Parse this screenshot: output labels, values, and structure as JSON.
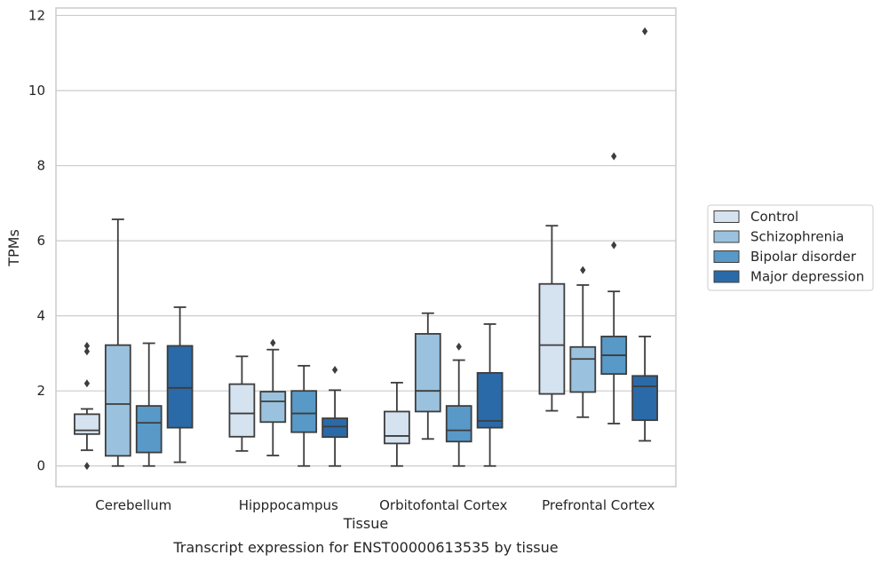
{
  "chart_data": {
    "type": "box",
    "caption": "Transcript expression for ENST00000613535 by tissue",
    "xlabel": "Tissue",
    "ylabel": "TPMs",
    "ylim": [
      -0.55,
      12.2
    ],
    "yticks": [
      0,
      2,
      4,
      6,
      8,
      10,
      12
    ],
    "grid": true,
    "legend_position": "right",
    "categories": [
      "Cerebellum",
      "Hipppocampus",
      "Orbitofontal Cortex",
      "Prefrontal Cortex"
    ],
    "series": [
      {
        "name": "Control",
        "color": "#d5e2f0",
        "boxes": [
          {
            "whislo": 0.42,
            "q1": 0.85,
            "med": 0.95,
            "q3": 1.38,
            "whishi": 1.52,
            "fliers": [
              0.0,
              2.2,
              3.05,
              3.2
            ]
          },
          {
            "whislo": 0.4,
            "q1": 0.78,
            "med": 1.4,
            "q3": 2.18,
            "whishi": 2.92,
            "fliers": []
          },
          {
            "whislo": 0.0,
            "q1": 0.6,
            "med": 0.8,
            "q3": 1.45,
            "whishi": 2.22,
            "fliers": []
          },
          {
            "whislo": 1.47,
            "q1": 1.92,
            "med": 3.22,
            "q3": 4.85,
            "whishi": 6.4,
            "fliers": []
          }
        ]
      },
      {
        "name": "Schizophrenia",
        "color": "#9ac2de",
        "boxes": [
          {
            "whislo": 0.0,
            "q1": 0.27,
            "med": 1.65,
            "q3": 3.22,
            "whishi": 6.57,
            "fliers": []
          },
          {
            "whislo": 0.28,
            "q1": 1.17,
            "med": 1.72,
            "q3": 1.98,
            "whishi": 3.1,
            "fliers": [
              3.28
            ]
          },
          {
            "whislo": 0.72,
            "q1": 1.45,
            "med": 2.0,
            "q3": 3.52,
            "whishi": 4.07,
            "fliers": []
          },
          {
            "whislo": 1.3,
            "q1": 1.97,
            "med": 2.85,
            "q3": 3.17,
            "whishi": 4.82,
            "fliers": [
              5.22
            ]
          }
        ]
      },
      {
        "name": "Bipolar disorder",
        "color": "#5899c7",
        "boxes": [
          {
            "whislo": 0.0,
            "q1": 0.36,
            "med": 1.15,
            "q3": 1.6,
            "whishi": 3.27,
            "fliers": []
          },
          {
            "whislo": 0.0,
            "q1": 0.9,
            "med": 1.4,
            "q3": 2.0,
            "whishi": 2.67,
            "fliers": []
          },
          {
            "whislo": 0.0,
            "q1": 0.65,
            "med": 0.95,
            "q3": 1.6,
            "whishi": 2.82,
            "fliers": [
              3.18
            ]
          },
          {
            "whislo": 1.13,
            "q1": 2.45,
            "med": 2.95,
            "q3": 3.45,
            "whishi": 4.65,
            "fliers": [
              5.88,
              8.25
            ]
          }
        ]
      },
      {
        "name": "Major depression",
        "color": "#2b6aa8",
        "boxes": [
          {
            "whislo": 0.1,
            "q1": 1.02,
            "med": 2.08,
            "q3": 3.2,
            "whishi": 4.23,
            "fliers": []
          },
          {
            "whislo": 0.0,
            "q1": 0.77,
            "med": 1.05,
            "q3": 1.27,
            "whishi": 2.02,
            "fliers": [
              2.56
            ]
          },
          {
            "whislo": 0.0,
            "q1": 1.02,
            "med": 1.2,
            "q3": 2.48,
            "whishi": 3.78,
            "fliers": []
          },
          {
            "whislo": 0.67,
            "q1": 1.22,
            "med": 2.12,
            "q3": 2.4,
            "whishi": 3.45,
            "fliers": [
              11.58
            ]
          }
        ]
      }
    ]
  }
}
